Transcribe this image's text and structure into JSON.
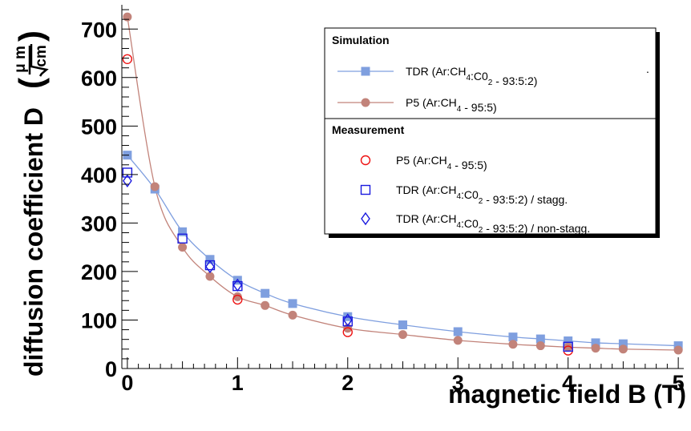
{
  "chart_data": {
    "type": "scatter",
    "xlabel": "magnetic field B (T)",
    "ylabel": "diffusion coefficient D",
    "ylabel_unit": {
      "num": "μ m",
      "den": "cm"
    },
    "xlim": [
      -0.05,
      5.05
    ],
    "ylim": [
      0,
      750
    ],
    "xticks": [
      "0",
      "1",
      "2",
      "3",
      "4",
      "5"
    ],
    "yticks": [
      "0",
      "100",
      "200",
      "300",
      "400",
      "500",
      "600",
      "700"
    ],
    "legend": {
      "simulation_header": "Simulation",
      "measurement_header": "Measurement",
      "placement": "top-right",
      "stray_mark": "."
    },
    "series": [
      {
        "group": "simulation",
        "name": "TDR (Ar:CH4:C02 - 93:5:2)",
        "label_parts": [
          {
            "t": "TDR  (Ar:CH"
          },
          {
            "t": "4",
            "sub": true
          },
          {
            "t": ":C0"
          },
          {
            "t": "2",
            "sub": true
          },
          {
            "t": " - 93:5:2)"
          }
        ],
        "marker": "filled-square",
        "color": "#7f9fdf",
        "curve": true,
        "x": [
          0,
          0.25,
          0.5,
          0.75,
          1,
          1.25,
          1.5,
          2,
          2.5,
          3,
          3.5,
          3.75,
          4,
          4.25,
          4.5,
          5
        ],
        "y": [
          440,
          370,
          282,
          225,
          182,
          155,
          134,
          107,
          90,
          76,
          65,
          61,
          57,
          53,
          51,
          47
        ]
      },
      {
        "group": "simulation",
        "name": "P5 (Ar:CH4 - 95:5)",
        "label_parts": [
          {
            "t": "P5  (Ar:CH"
          },
          {
            "t": "4",
            "sub": true
          },
          {
            "t": " - 95:5)"
          }
        ],
        "marker": "filled-circle",
        "color": "#c2837a",
        "curve": true,
        "x": [
          0,
          0.25,
          0.5,
          0.75,
          1,
          1.25,
          1.5,
          2,
          2.5,
          3,
          3.5,
          3.75,
          4,
          4.25,
          4.5,
          5
        ],
        "y": [
          725,
          375,
          250,
          190,
          148,
          130,
          110,
          83,
          70,
          58,
          50,
          47,
          44,
          42,
          40,
          38
        ]
      },
      {
        "group": "measurement",
        "name": "P5 (Ar:CH4 - 95:5)",
        "label_parts": [
          {
            "t": "P5  (Ar:CH"
          },
          {
            "t": "4",
            "sub": true
          },
          {
            "t": " - 95:5)"
          }
        ],
        "marker": "open-circle",
        "color": "#ee1111",
        "curve": false,
        "x": [
          0,
          1,
          2,
          4
        ],
        "y": [
          638,
          142,
          75,
          37
        ]
      },
      {
        "group": "measurement",
        "name": "TDR (Ar:CH4:C02 - 93:5:2) / stagg.",
        "label_parts": [
          {
            "t": "TDR  (Ar:CH"
          },
          {
            "t": "4",
            "sub": true
          },
          {
            "t": ":C0"
          },
          {
            "t": "2",
            "sub": true
          },
          {
            "t": " - 93:5:2) / stagg."
          }
        ],
        "marker": "open-square",
        "color": "#1a1adf",
        "curve": false,
        "x": [
          0,
          0.5,
          0.75,
          1,
          2,
          4
        ],
        "y": [
          404,
          268,
          213,
          170,
          97,
          45
        ]
      },
      {
        "group": "measurement",
        "name": "TDR (Ar:CH4:C02 - 93:5:2) / non-stagg.",
        "label_parts": [
          {
            "t": "TDR  (Ar:CH"
          },
          {
            "t": "4",
            "sub": true
          },
          {
            "t": ":C0"
          },
          {
            "t": "2",
            "sub": true
          },
          {
            "t": " - 93:5:2) / non-stagg."
          }
        ],
        "marker": "open-diamond",
        "color": "#1a1adf",
        "curve": false,
        "x": [
          0,
          0.75,
          1,
          2
        ],
        "y": [
          387,
          210,
          172,
          100
        ]
      }
    ]
  }
}
